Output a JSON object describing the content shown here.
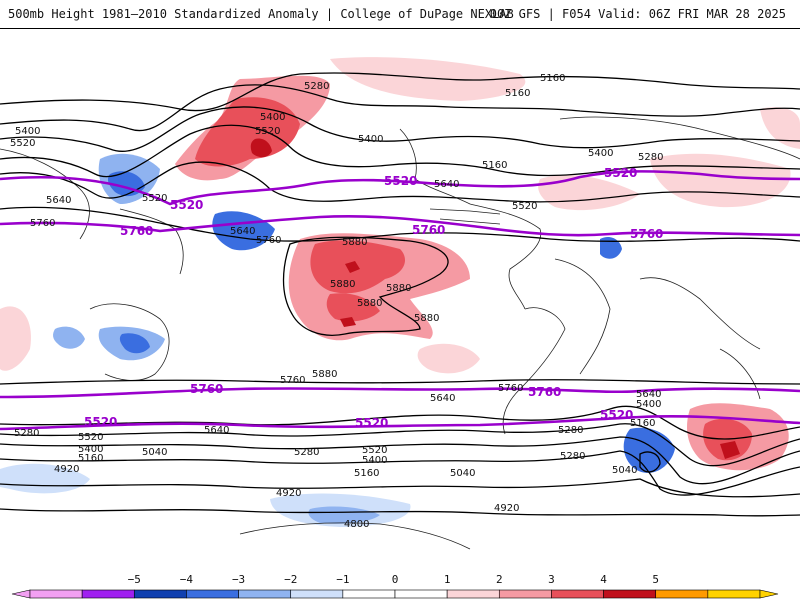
{
  "header": {
    "title_left": "500mb Height 1981–2010 Standardized Anomaly | College of DuPage NEXLAB",
    "title_right": "00Z GFS | F054 Valid: 06Z FRI MAR 28 2025"
  },
  "colors": {
    "highlight_contour": "#9900cc",
    "height_contour": "#000000",
    "coastline": "#222222"
  },
  "map": {
    "contour_labels": [
      "5280",
      "5160",
      "5160",
      "5400",
      "5520",
      "5400",
      "5400",
      "5160",
      "5400",
      "5280",
      "5520",
      "5640",
      "5520",
      "5640",
      "5760",
      "5520",
      "5760",
      "5640",
      "5880",
      "5880",
      "5880",
      "5880",
      "5880",
      "5880",
      "5760",
      "5760",
      "5640",
      "5640",
      "5400",
      "5520",
      "5280",
      "5160",
      "5520",
      "5400",
      "5280",
      "5040",
      "5280",
      "5160",
      "5040",
      "4920",
      "4920",
      "4920",
      "4800",
      "5160",
      "5040",
      "5400",
      "5640",
      "5280"
    ],
    "highlight_labels": [
      "5520",
      "5520",
      "5520",
      "5520",
      "5760",
      "5760",
      "5760",
      "5760",
      "5760",
      "5520",
      "5520",
      "5520",
      "5520"
    ]
  },
  "colorbar": {
    "ticks": [
      "−5",
      "−4",
      "−3",
      "−2",
      "−1",
      "0",
      "1",
      "2",
      "3",
      "4",
      "5"
    ],
    "colors": [
      "#f2a0f2",
      "#a020f0",
      "#1040b0",
      "#3a6ee0",
      "#8fb3f0",
      "#cfe0fa",
      "#ffffff",
      "#ffffff",
      "#fbd5d8",
      "#f59aa3",
      "#e8505a",
      "#c0101c",
      "#ff9a00",
      "#ffd200"
    ]
  }
}
